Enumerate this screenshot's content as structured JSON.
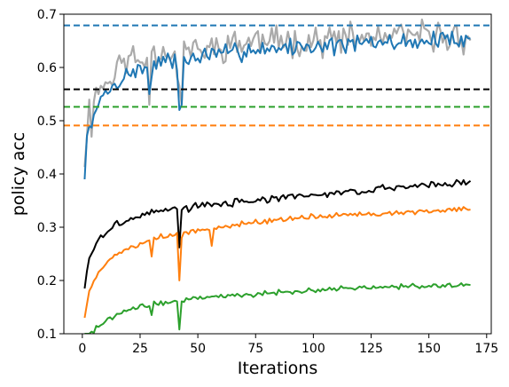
{
  "chart_data": {
    "type": "line",
    "xlabel": "Iterations",
    "ylabel": "policy acc",
    "xlim": [
      -8,
      177
    ],
    "ylim": [
      0.1,
      0.7
    ],
    "xticks": [
      0,
      25,
      50,
      75,
      100,
      125,
      150,
      175
    ],
    "yticks": [
      0.1,
      0.2,
      0.3,
      0.4,
      0.5,
      0.6,
      0.7
    ],
    "grid": false,
    "legend": "none",
    "hlines": [
      {
        "y": 0.679,
        "color": "#1f77b4",
        "style": "dashed"
      },
      {
        "y": 0.559,
        "color": "#000000",
        "style": "dashed"
      },
      {
        "y": 0.526,
        "color": "#2ca02c",
        "style": "dashed"
      },
      {
        "y": 0.491,
        "color": "#ff7f0e",
        "style": "dashed"
      }
    ],
    "series": [
      {
        "color": "#aaaaaa",
        "x_start": 1,
        "x_end": 168,
        "points": 168,
        "keypoints": [
          [
            1,
            0.43
          ],
          [
            3,
            0.52
          ],
          [
            5,
            0.56
          ],
          [
            8,
            0.56
          ],
          [
            12,
            0.58
          ],
          [
            15,
            0.6
          ],
          [
            20,
            0.62
          ],
          [
            25,
            0.61
          ],
          [
            30,
            0.63
          ],
          [
            40,
            0.63
          ],
          [
            42,
            0.56
          ],
          [
            44,
            0.64
          ],
          [
            50,
            0.63
          ],
          [
            60,
            0.64
          ],
          [
            75,
            0.65
          ],
          [
            100,
            0.65
          ],
          [
            125,
            0.655
          ],
          [
            150,
            0.66
          ],
          [
            168,
            0.655
          ]
        ],
        "noise": 0.035,
        "seed": 11,
        "dips": [
          [
            2,
            0.47
          ],
          [
            4,
            0.47
          ],
          [
            29,
            0.53
          ],
          [
            43,
            0.53
          ]
        ],
        "clip": [
          0.4,
          0.699
        ]
      },
      {
        "color": "#1f77b4",
        "x_start": 1,
        "x_end": 168,
        "points": 168,
        "keypoints": [
          [
            1,
            0.39
          ],
          [
            2,
            0.46
          ],
          [
            4,
            0.5
          ],
          [
            7,
            0.53
          ],
          [
            10,
            0.55
          ],
          [
            15,
            0.57
          ],
          [
            20,
            0.59
          ],
          [
            25,
            0.595
          ],
          [
            30,
            0.6
          ],
          [
            35,
            0.61
          ],
          [
            40,
            0.61
          ],
          [
            50,
            0.62
          ],
          [
            60,
            0.625
          ],
          [
            75,
            0.635
          ],
          [
            100,
            0.64
          ],
          [
            125,
            0.645
          ],
          [
            150,
            0.65
          ],
          [
            168,
            0.655
          ]
        ],
        "noise": 0.022,
        "seed": 7,
        "dips": [
          [
            1,
            0.39
          ],
          [
            3,
            0.49
          ],
          [
            6,
            0.52
          ],
          [
            29,
            0.55
          ],
          [
            42,
            0.52
          ],
          [
            43,
            0.53
          ]
        ],
        "clip": [
          0.38,
          0.695
        ]
      },
      {
        "color": "#000000",
        "x_start": 1,
        "x_end": 168,
        "points": 168,
        "keypoints": [
          [
            1,
            0.185
          ],
          [
            3,
            0.24
          ],
          [
            6,
            0.27
          ],
          [
            10,
            0.29
          ],
          [
            15,
            0.305
          ],
          [
            20,
            0.315
          ],
          [
            25,
            0.32
          ],
          [
            30,
            0.33
          ],
          [
            40,
            0.335
          ],
          [
            45,
            0.335
          ],
          [
            50,
            0.34
          ],
          [
            75,
            0.35
          ],
          [
            100,
            0.36
          ],
          [
            125,
            0.37
          ],
          [
            150,
            0.38
          ],
          [
            168,
            0.385
          ]
        ],
        "noise": 0.008,
        "seed": 3,
        "dips": [
          [
            1,
            0.185
          ],
          [
            42,
            0.262
          ],
          [
            168,
            0.387
          ]
        ],
        "clip": [
          0.18,
          0.4
        ]
      },
      {
        "color": "#ff7f0e",
        "x_start": 1,
        "x_end": 168,
        "points": 168,
        "keypoints": [
          [
            1,
            0.13
          ],
          [
            3,
            0.18
          ],
          [
            6,
            0.21
          ],
          [
            10,
            0.23
          ],
          [
            15,
            0.25
          ],
          [
            20,
            0.26
          ],
          [
            25,
            0.27
          ],
          [
            30,
            0.28
          ],
          [
            40,
            0.285
          ],
          [
            45,
            0.29
          ],
          [
            50,
            0.295
          ],
          [
            75,
            0.31
          ],
          [
            100,
            0.32
          ],
          [
            125,
            0.325
          ],
          [
            150,
            0.33
          ],
          [
            168,
            0.333
          ]
        ],
        "noise": 0.006,
        "seed": 5,
        "dips": [
          [
            1,
            0.13
          ],
          [
            30,
            0.245
          ],
          [
            42,
            0.2
          ],
          [
            43,
            0.28
          ],
          [
            56,
            0.265
          ]
        ],
        "clip": [
          0.12,
          0.34
        ]
      },
      {
        "color": "#2ca02c",
        "x_start": 1,
        "x_end": 168,
        "points": 168,
        "keypoints": [
          [
            3,
            0.1
          ],
          [
            6,
            0.11
          ],
          [
            10,
            0.125
          ],
          [
            15,
            0.135
          ],
          [
            20,
            0.145
          ],
          [
            25,
            0.15
          ],
          [
            30,
            0.155
          ],
          [
            40,
            0.16
          ],
          [
            45,
            0.165
          ],
          [
            50,
            0.168
          ],
          [
            75,
            0.175
          ],
          [
            100,
            0.182
          ],
          [
            125,
            0.187
          ],
          [
            150,
            0.19
          ],
          [
            168,
            0.192
          ]
        ],
        "noise": 0.006,
        "seed": 9,
        "dips": [
          [
            42,
            0.108
          ],
          [
            30,
            0.135
          ]
        ],
        "clip": [
          0.1,
          0.2
        ]
      }
    ]
  }
}
